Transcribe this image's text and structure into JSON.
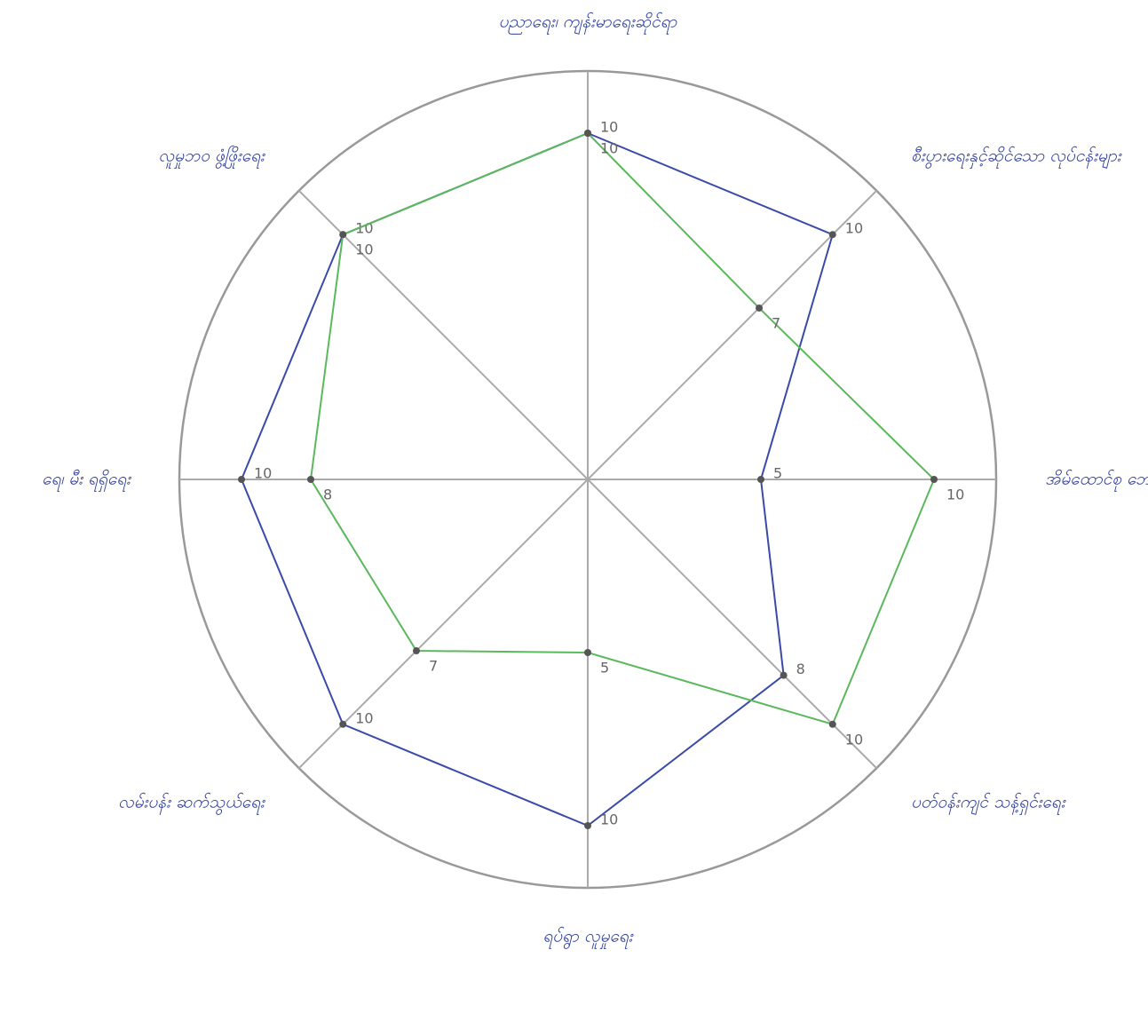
{
  "chart_data": {
    "type": "radar",
    "categories": [
      "ပညာရေး၊ ကျန်းမာရေးဆိုင်ရာ",
      "စီးပွားရေးနှင့်ဆိုင်သော လုပ်ငန်းများ",
      "အိမ်ထောင်စု ဘေးကင်းရေး",
      "ပတ်ဝန်းကျင် သန့်ရှင်းရေး",
      "ရပ်ရွာ လူမှုရေး",
      "လမ်းပန်း ဆက်သွယ်ရေး",
      "ရေ၊ မီး ရရှိရေး",
      "လူမှုဘဝ ဖွံ့ဖြိုးရေး"
    ],
    "series": [
      {
        "color": "#3a4aa8",
        "values": [
          10,
          10,
          5,
          8,
          10,
          10,
          10,
          10
        ]
      },
      {
        "color": "#5cb85c",
        "values": [
          10,
          7,
          10,
          10,
          5,
          7,
          8,
          10
        ]
      }
    ],
    "rlim": [
      0,
      10
    ]
  }
}
